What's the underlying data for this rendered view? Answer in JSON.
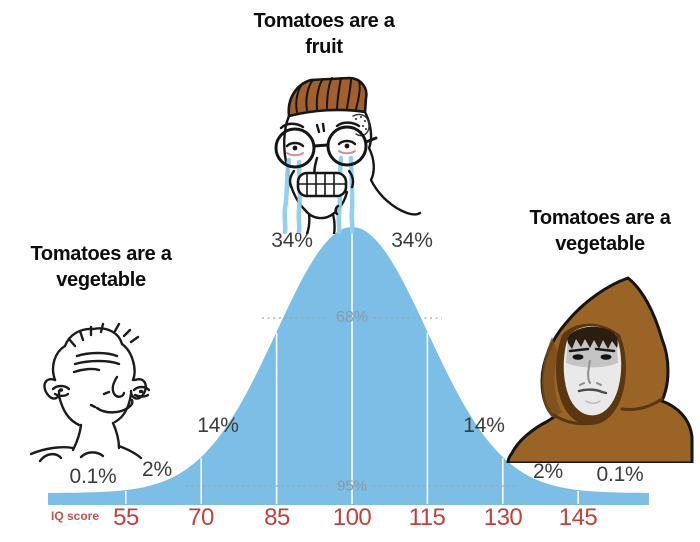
{
  "captions": {
    "top": {
      "lines": [
        "Tomatoes are a",
        "fruit"
      ]
    },
    "left": {
      "lines": [
        "Tomatoes are a",
        "vegetable"
      ]
    },
    "right": {
      "lines": [
        "Tomatoes are a",
        "vegetable"
      ]
    }
  },
  "characters": [
    {
      "name": "brainlet-wojak",
      "position": "left",
      "caption": "Tomatoes are a vegetable"
    },
    {
      "name": "crying-midwit-wojak",
      "position": "center",
      "caption": "Tomatoes are a fruit"
    },
    {
      "name": "hooded-wojak",
      "position": "right",
      "caption": "Tomatoes are a vegetable"
    }
  ],
  "chart_data": {
    "type": "area",
    "subtype": "normal_distribution_bell_curve",
    "title": "",
    "xlabel": "IQ score",
    "x_ticks": [
      "55",
      "70",
      "85",
      "100",
      "115",
      "130",
      "145"
    ],
    "mean": 100,
    "std_dev": 15,
    "segment_labels": [
      "0.1%",
      "2%",
      "14%",
      "34%",
      "34%",
      "14%",
      "2%",
      "0.1%"
    ],
    "interval_labels": [
      "68%",
      "95%"
    ],
    "grid": false,
    "legend": false,
    "colors": {
      "curve_fill": "#7cbee5",
      "tick_labels": "#c2413c",
      "segment_labels": "#3c3c3c",
      "interval_labels": "#8d98a0"
    }
  }
}
